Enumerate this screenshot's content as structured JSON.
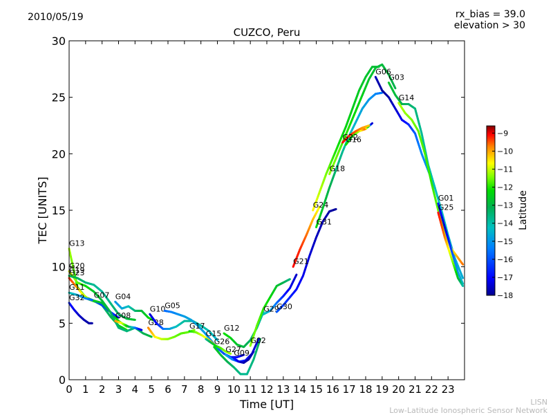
{
  "header": {
    "date": "2010/05/19",
    "rx_bias": "rx_bias = 39.0",
    "elevation": "elevation > 30"
  },
  "footer": {
    "line1": "LISN",
    "line2": "Low-Latitude Ionospheric Sensor Network"
  },
  "colors": {
    "colormap": [
      "#00008f",
      "#0000ff",
      "#0080ff",
      "#00c0c0",
      "#00b050",
      "#00dd00",
      "#80ff00",
      "#ffff00",
      "#ff8000",
      "#ff0000",
      "#800000"
    ]
  },
  "chart_data": {
    "type": "scatter",
    "title": "CUZCO, Peru",
    "xlabel": "Time [UT]",
    "ylabel": "TEC [UNITS]",
    "xlim": [
      0,
      24
    ],
    "ylim": [
      0,
      30
    ],
    "xticks": [
      0,
      1,
      2,
      3,
      4,
      5,
      6,
      7,
      8,
      9,
      10,
      11,
      12,
      13,
      14,
      15,
      16,
      17,
      18,
      19,
      20,
      21,
      22,
      23
    ],
    "yticks": [
      0,
      5,
      10,
      15,
      20,
      25,
      30
    ],
    "grid": false,
    "colorbar": {
      "label": "Latitude",
      "range": [
        -18,
        -8.6
      ],
      "ticks": [
        -9,
        -10,
        -11,
        -12,
        -13,
        -14,
        -15,
        -16,
        -17,
        -18
      ]
    },
    "series": [
      {
        "name": "G13",
        "x": [
          0,
          0.5,
          1,
          1.5,
          2,
          2.5,
          3,
          3.5
        ],
        "y": [
          11.6,
          8.2,
          7.3,
          7.0,
          6.6,
          5.6,
          4.8,
          4.4
        ],
        "lat": [
          -12,
          -13.2,
          -14,
          -14.4,
          -14.6,
          -14.3,
          -13.8,
          -13.2
        ]
      },
      {
        "name": "G20",
        "x": [
          0,
          0.5,
          1,
          1.5,
          2,
          2.5,
          3,
          3.5
        ],
        "y": [
          9.6,
          8.6,
          8.3,
          7.8,
          7.0,
          6.0,
          5.2,
          4.7
        ],
        "lat": [
          -11.5,
          -12.5,
          -13.3,
          -13.8,
          -14.0,
          -13.8,
          -13.2,
          -12.5
        ]
      },
      {
        "name": "G23",
        "x": [
          0,
          0.4,
          0.8,
          1.2,
          1.6,
          2.0
        ],
        "y": [
          9.0,
          8.3,
          7.6,
          7.1,
          6.9,
          6.6
        ],
        "lat": [
          -9.8,
          -10.5,
          -11.5,
          -12.4,
          -13.2,
          -13.8
        ]
      },
      {
        "name": "G19",
        "x": [
          0,
          0.5,
          1,
          1.5,
          2,
          2.5,
          3,
          3.5,
          4
        ],
        "y": [
          9.2,
          9.0,
          8.6,
          8.4,
          7.8,
          6.8,
          5.8,
          5.4,
          5.3
        ],
        "lat": [
          -14.0,
          -14.3,
          -14.6,
          -14.8,
          -14.9,
          -14.7,
          -14.4,
          -14.1,
          -13.8
        ]
      },
      {
        "name": "G11",
        "x": [
          0,
          0.5,
          1,
          1.5,
          2,
          2.5,
          3
        ],
        "y": [
          7.7,
          7.5,
          7.2,
          7.0,
          6.6,
          6.0,
          5.5
        ],
        "lat": [
          -15.0,
          -15.5,
          -16.0,
          -16.4,
          -16.6,
          -16.7,
          -16.8
        ]
      },
      {
        "name": "G32",
        "x": [
          0,
          0.3,
          0.6,
          0.9,
          1.2,
          1.4
        ],
        "y": [
          6.8,
          6.2,
          5.7,
          5.3,
          5.0,
          5.0
        ],
        "lat": [
          -16.8,
          -17.2,
          -17.5,
          -17.7,
          -17.8,
          -17.8
        ]
      },
      {
        "name": "G07",
        "x": [
          1.5,
          2,
          2.5,
          3,
          3.5,
          4,
          4.5,
          5
        ],
        "y": [
          7.0,
          6.8,
          6.0,
          4.6,
          4.3,
          4.6,
          4.1,
          3.8
        ],
        "lat": [
          -13.5,
          -13.9,
          -14.3,
          -14.5,
          -14.6,
          -14.5,
          -14.3,
          -14.0
        ]
      },
      {
        "name": "G04",
        "x": [
          2.8,
          3.2,
          3.6,
          4,
          4.4,
          4.8,
          5.2
        ],
        "y": [
          6.9,
          6.3,
          6.5,
          6.1,
          6.1,
          5.5,
          5.2
        ],
        "lat": [
          -15.8,
          -15.6,
          -15.2,
          -14.6,
          -14.0,
          -13.5,
          -13.0
        ]
      },
      {
        "name": "G08",
        "x": [
          2.8,
          3.2,
          3.6,
          4.0,
          4.4
        ],
        "y": [
          5.2,
          5.0,
          4.7,
          4.6,
          4.4
        ],
        "lat": [
          -10.5,
          -11.5,
          -14.0,
          -16.0,
          -17.4
        ]
      },
      {
        "name": "G28",
        "x": [
          4.8,
          5.2,
          5.6,
          6.0,
          6.4,
          6.8,
          7.2,
          7.6
        ],
        "y": [
          4.6,
          3.8,
          3.6,
          3.6,
          3.8,
          4.1,
          4.2,
          4.4
        ],
        "lat": [
          -10.5,
          -11.2,
          -11.8,
          -12.2,
          -12.5,
          -12.7,
          -12.6,
          -12.4
        ]
      },
      {
        "name": "G10",
        "x": [
          4.9,
          5.3,
          5.7,
          6.1,
          6.5,
          7.0,
          7.5,
          8.0,
          8.5,
          9.0
        ],
        "y": [
          5.8,
          5.0,
          4.5,
          4.5,
          4.7,
          5.2,
          5.2,
          4.8,
          4.3,
          3.5
        ],
        "lat": [
          -17.5,
          -17.0,
          -16.3,
          -15.7,
          -15.2,
          -14.9,
          -14.8,
          -14.9,
          -15.1,
          -15.4
        ]
      },
      {
        "name": "G05",
        "x": [
          5.8,
          6.2,
          6.6,
          7.0,
          7.4,
          7.8,
          8.2,
          8.6,
          9.0,
          9.4,
          9.8,
          10.2,
          10.6
        ],
        "y": [
          6.1,
          6.0,
          5.8,
          5.6,
          5.3,
          4.8,
          4.2,
          3.5,
          2.8,
          2.3,
          2.0,
          2.0,
          2.2
        ],
        "lat": [
          -16.3,
          -16.1,
          -15.9,
          -15.7,
          -15.6,
          -15.6,
          -15.7,
          -15.9,
          -16.2,
          -16.5,
          -16.8,
          -17.1,
          -17.4
        ]
      },
      {
        "name": "G17",
        "x": [
          7.3,
          7.7,
          8.1,
          8.5,
          8.9
        ],
        "y": [
          4.3,
          4.2,
          3.9,
          3.5,
          3.0
        ],
        "lat": [
          -13.4,
          -12.5,
          -11.7,
          -11.2,
          -10.8
        ]
      },
      {
        "name": "G15",
        "x": [
          8.3,
          8.6,
          8.9,
          9.2,
          9.5,
          9.8
        ],
        "y": [
          3.6,
          3.3,
          3.0,
          2.8,
          2.5,
          2.3
        ],
        "lat": [
          -15.0,
          -14.2,
          -13.4,
          -12.8,
          -12.4,
          -12.2
        ]
      },
      {
        "name": "G12",
        "x": [
          9.4,
          9.8,
          10.2,
          10.6,
          11.0,
          11.4,
          11.8
        ],
        "y": [
          4.1,
          3.7,
          3.1,
          2.9,
          3.5,
          4.6,
          6.0
        ],
        "lat": [
          -13.2,
          -13.5,
          -13.8,
          -14.1,
          -14.4,
          -14.7,
          -15.0
        ]
      },
      {
        "name": "G26",
        "x": [
          8.8,
          9.2,
          9.6,
          10.0,
          10.4,
          10.8,
          11.2,
          11.6
        ],
        "y": [
          2.9,
          2.2,
          1.6,
          1.1,
          0.5,
          0.5,
          1.8,
          3.6
        ],
        "lat": [
          -13.6,
          -13.9,
          -14.2,
          -14.5,
          -14.7,
          -14.8,
          -14.6,
          -14.3
        ]
      },
      {
        "name": "G27",
        "x": [
          9.5,
          9.9,
          10.3,
          10.7,
          11.1,
          11.5
        ],
        "y": [
          2.2,
          1.8,
          1.6,
          1.7,
          2.3,
          3.6
        ],
        "lat": [
          -15.5,
          -16.0,
          -16.6,
          -17.0,
          -17.3,
          -17.5
        ]
      },
      {
        "name": "G09",
        "x": [
          10.0,
          10.3,
          10.6,
          10.9,
          11.2
        ],
        "y": [
          1.9,
          1.6,
          1.5,
          1.8,
          2.5
        ],
        "lat": [
          -16.8,
          -17.3,
          -17.7,
          -17.8,
          -17.6
        ]
      },
      {
        "name": "G02",
        "x": [
          11.0,
          11.4,
          11.8,
          12.2,
          12.6,
          13.0,
          13.4
        ],
        "y": [
          3.0,
          4.8,
          6.3,
          7.3,
          8.3,
          8.6,
          8.9
        ],
        "lat": [
          -12.3,
          -12.6,
          -13.0,
          -13.4,
          -13.8,
          -14.2,
          -14.6
        ]
      },
      {
        "name": "G29",
        "x": [
          11.8,
          12.2,
          12.6,
          13.0,
          13.4,
          13.8
        ],
        "y": [
          5.8,
          6.1,
          6.8,
          7.4,
          8.1,
          9.3
        ],
        "lat": [
          -15.0,
          -15.6,
          -16.2,
          -16.8,
          -17.2,
          -17.5
        ]
      },
      {
        "name": "G30",
        "x": [
          12.6,
          13.0,
          13.4,
          13.8,
          14.2,
          14.6,
          15.0,
          15.4,
          15.8,
          16.2
        ],
        "y": [
          6.0,
          6.6,
          7.3,
          8.0,
          9.2,
          11.0,
          12.6,
          14.0,
          14.9,
          15.1
        ],
        "lat": [
          -16.4,
          -16.6,
          -16.8,
          -17.0,
          -17.2,
          -17.4,
          -17.6,
          -17.7,
          -17.8,
          -17.9
        ]
      },
      {
        "name": "G21",
        "x": [
          13.6,
          14.0,
          14.4,
          14.8,
          15.2
        ],
        "y": [
          10.0,
          11.5,
          12.8,
          14.2,
          15.3
        ],
        "lat": [
          -9.6,
          -9.8,
          -10.3,
          -10.9,
          -11.5
        ]
      },
      {
        "name": "G24",
        "x": [
          14.8,
          15.2,
          15.6,
          16.0,
          16.4,
          16.8,
          17.2,
          17.6,
          18.0,
          18.4,
          18.8
        ],
        "y": [
          15.0,
          16.6,
          18.2,
          19.6,
          21.0,
          22.4,
          24.0,
          25.6,
          26.8,
          27.7,
          27.7
        ],
        "lat": [
          -11.3,
          -11.9,
          -12.4,
          -12.9,
          -13.3,
          -13.5,
          -13.6,
          -13.7,
          -13.8,
          -13.9,
          -14.0
        ]
      },
      {
        "name": "G31",
        "x": [
          15.0,
          15.4,
          15.8,
          16.2,
          16.6,
          17.0,
          17.4,
          17.8,
          18.2,
          18.6,
          19.0
        ],
        "y": [
          13.5,
          15.2,
          17.0,
          18.6,
          20.2,
          21.6,
          22.8,
          24.0,
          24.8,
          25.3,
          25.4
        ],
        "lat": [
          -13.4,
          -13.8,
          -14.2,
          -14.5,
          -14.8,
          -15.1,
          -15.4,
          -15.6,
          -15.8,
          -16.0,
          -16.2
        ]
      },
      {
        "name": "G18",
        "x": [
          15.8,
          16.2,
          16.6,
          17.0,
          17.4,
          17.8,
          18.2,
          18.6,
          19.0,
          19.4,
          19.8
        ],
        "y": [
          18.2,
          19.6,
          21.0,
          22.4,
          23.8,
          25.2,
          26.6,
          27.6,
          27.9,
          27.0,
          25.8
        ],
        "lat": [
          -12.2,
          -12.5,
          -12.8,
          -13.1,
          -13.4,
          -13.6,
          -13.8,
          -13.9,
          -14.0,
          -14.1,
          -14.2
        ]
      },
      {
        "name": "G16",
        "x": [
          16.8,
          17.2,
          17.6,
          18.0,
          18.4
        ],
        "y": [
          20.8,
          21.6,
          22.0,
          22.2,
          22.7
        ],
        "lat": [
          -13.2,
          -13.5,
          -12.0,
          -10.2,
          -17.8
        ]
      },
      {
        "name": "G22",
        "x": [
          16.6,
          17.0,
          17.4,
          17.8,
          18.2
        ],
        "y": [
          21.0,
          21.6,
          22.0,
          22.3,
          22.5
        ],
        "lat": [
          -9.6,
          -9.8,
          -10.2,
          -10.6,
          -11.0
        ]
      },
      {
        "name": "G06",
        "x": [
          18.6,
          19.0,
          19.4,
          19.8,
          20.2,
          20.6,
          21.0,
          21.4,
          21.8,
          22.2
        ],
        "y": [
          26.8,
          25.6,
          25.0,
          24.0,
          23.0,
          22.6,
          21.8,
          20.0,
          18.5,
          17.0
        ],
        "lat": [
          -17.6,
          -17.9,
          -17.8,
          -17.5,
          -17.2,
          -16.8,
          -16.4,
          -16.0,
          -15.8,
          -15.7
        ]
      },
      {
        "name": "G03",
        "x": [
          19.4,
          19.8,
          20.2,
          20.6,
          21.0,
          21.4,
          21.8,
          22.2,
          22.6,
          23.0,
          23.4,
          23.9
        ],
        "y": [
          26.3,
          25.2,
          24.4,
          24.4,
          24.0,
          21.8,
          19.0,
          17.0,
          15.0,
          12.8,
          10.8,
          9.0
        ],
        "lat": [
          -13.8,
          -14.0,
          -14.2,
          -14.4,
          -14.6,
          -14.8,
          -15.0,
          -15.1,
          -15.2,
          -15.3,
          -15.4,
          -15.5
        ]
      },
      {
        "name": "G14",
        "x": [
          20.0,
          20.4,
          20.8,
          21.2,
          21.6,
          22.0,
          22.4,
          22.8,
          23.2,
          23.6,
          23.9
        ],
        "y": [
          24.5,
          23.6,
          23.0,
          22.0,
          20.0,
          17.4,
          15.0,
          13.0,
          11.6,
          10.8,
          10.2
        ],
        "lat": [
          -12.0,
          -12.2,
          -12.4,
          -12.6,
          -12.8,
          -13.0,
          -12.6,
          -12.0,
          -11.4,
          -10.8,
          -10.4
        ]
      },
      {
        "name": "G01",
        "x": [
          22.4,
          22.8,
          23.2,
          23.6,
          23.9
        ],
        "y": [
          15.6,
          13.5,
          11.5,
          9.5,
          8.5
        ],
        "lat": [
          -16.8,
          -17.5,
          -16.6,
          -15.8,
          -15.2
        ]
      },
      {
        "name": "G25",
        "x": [
          22.4,
          22.8,
          23.2,
          23.6,
          23.9
        ],
        "y": [
          14.8,
          12.6,
          10.8,
          9.0,
          8.3
        ],
        "lat": [
          -9.6,
          -10.4,
          -12.0,
          -13.8,
          -15.0
        ]
      }
    ]
  }
}
